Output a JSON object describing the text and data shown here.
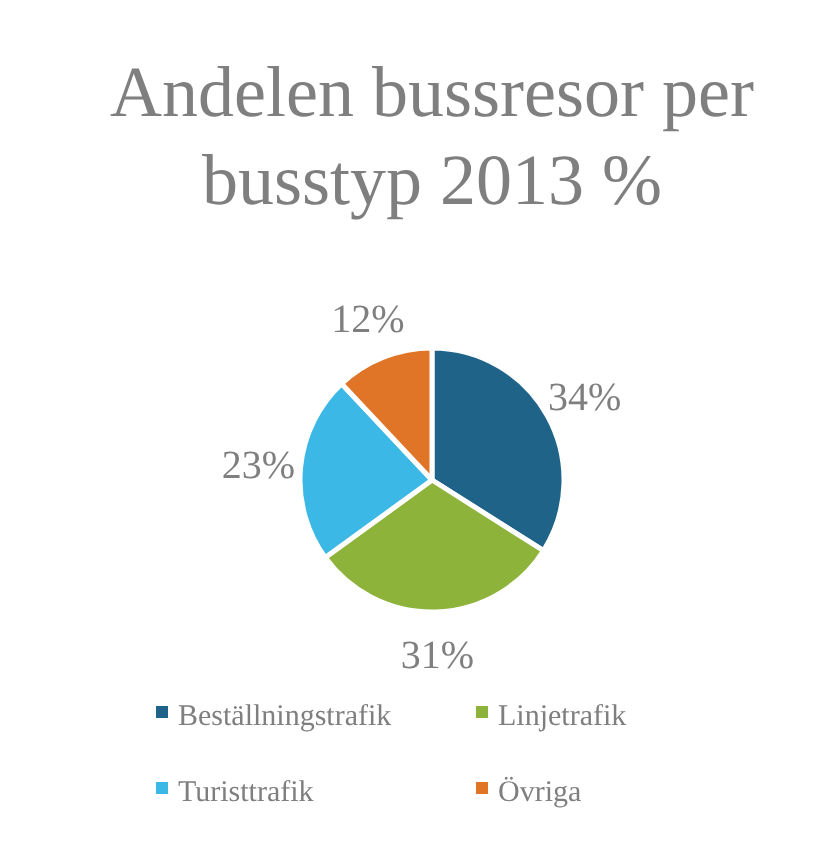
{
  "chart_data": {
    "type": "pie",
    "title": "Andelen bussresor per busstyp 2013 %",
    "categories": [
      "Beställningstrafik",
      "Linjetrafik",
      "Turisttrafik",
      "Övriga"
    ],
    "values": [
      34,
      31,
      23,
      12
    ],
    "colors": [
      "#1f6388",
      "#8db33a",
      "#3cb8e6",
      "#e07527"
    ],
    "value_labels": [
      "34%",
      "31%",
      "23%",
      "12%"
    ],
    "legend": "bottom"
  }
}
